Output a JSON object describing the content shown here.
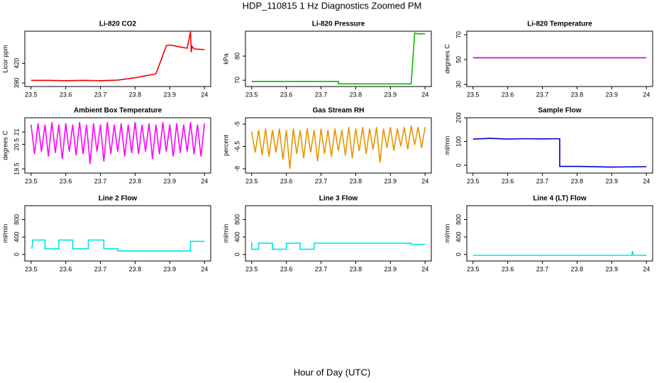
{
  "title": "HDP_110815  1 Hz Diagnostics Zoomed PM",
  "xlabel": "Hour of Day (UTC)",
  "chart_data": [
    {
      "type": "line",
      "title": "Li-820 CO2",
      "ylabel": "Licor ppm",
      "color": "#ee0000",
      "x": [
        23.5,
        23.55,
        23.6,
        23.65,
        23.7,
        23.75,
        23.8,
        23.83,
        23.86,
        23.875,
        23.89,
        23.9,
        23.92,
        23.95,
        23.96,
        23.962,
        23.964,
        23.97,
        24.0
      ],
      "values": [
        394,
        394,
        393.5,
        394,
        393.5,
        394.5,
        398,
        401,
        404,
        425,
        447,
        448,
        446,
        443,
        468,
        437,
        446,
        442,
        441
      ],
      "xlim": [
        23.482,
        24.018
      ],
      "xticks": [
        23.5,
        23.6,
        23.7,
        23.8,
        23.9,
        24.0
      ],
      "ylim": [
        384.6,
        469
      ],
      "yticks": [
        390,
        420
      ]
    },
    {
      "type": "line",
      "title": "Li-820 Pressure",
      "ylabel": "kPa",
      "color": "#00bb00",
      "x": [
        23.5,
        23.75,
        23.75,
        23.96,
        23.97,
        23.98,
        24.0
      ],
      "values": [
        69.5,
        69.5,
        68.5,
        68.5,
        89.5,
        89.2,
        89.2
      ],
      "xlim": [
        23.482,
        24.018
      ],
      "xticks": [
        23.5,
        23.6,
        23.7,
        23.8,
        23.9,
        24.0
      ],
      "ylim": [
        67.4,
        90.3
      ],
      "yticks": [
        70,
        80
      ]
    },
    {
      "type": "line",
      "title": "Li-820 Temperature",
      "ylabel": "degrees C",
      "color": "#cc00cc",
      "x": [
        23.5,
        24.0
      ],
      "values": [
        51.5,
        51.5
      ],
      "xlim": [
        23.482,
        24.018
      ],
      "xticks": [
        23.5,
        23.6,
        23.7,
        23.8,
        23.9,
        24.0
      ],
      "ylim": [
        28.3,
        72.9
      ],
      "yticks": [
        30,
        50,
        70
      ]
    },
    {
      "type": "line",
      "title": "Ambient Box Temperature",
      "ylabel": "degrees C",
      "color": "#ff00ff",
      "x": [
        23.5,
        23.51,
        23.52,
        23.53,
        23.54,
        23.55,
        23.56,
        23.57,
        23.58,
        23.59,
        23.6,
        23.61,
        23.62,
        23.63,
        23.64,
        23.65,
        23.66,
        23.67,
        23.68,
        23.69,
        23.7,
        23.71,
        23.72,
        23.73,
        23.74,
        23.75,
        23.76,
        23.77,
        23.78,
        23.79,
        23.8,
        23.81,
        23.82,
        23.83,
        23.84,
        23.85,
        23.86,
        23.87,
        23.88,
        23.89,
        23.9,
        23.91,
        23.92,
        23.93,
        23.94,
        23.95,
        23.96,
        23.97,
        23.98,
        23.99,
        24.0
      ],
      "values": [
        21.3,
        20.1,
        21.35,
        20.2,
        21.3,
        20.0,
        21.4,
        20.15,
        21.3,
        19.9,
        21.35,
        20.2,
        21.3,
        20.05,
        21.4,
        20.1,
        21.3,
        19.7,
        21.35,
        20.2,
        21.3,
        19.8,
        21.4,
        20.1,
        21.3,
        20.2,
        21.35,
        20.0,
        21.3,
        20.15,
        21.4,
        20.1,
        21.3,
        20.2,
        21.35,
        19.9,
        21.3,
        20.1,
        21.4,
        20.2,
        21.3,
        20.0,
        21.35,
        20.15,
        21.3,
        20.2,
        21.4,
        20.1,
        21.3,
        20.0,
        21.35
      ],
      "xlim": [
        23.482,
        24.018
      ],
      "xticks": [
        23.5,
        23.6,
        23.7,
        23.8,
        23.9,
        24.0
      ],
      "ylim": [
        19.33,
        21.58
      ],
      "yticks": [
        19.5,
        20.5,
        21.0
      ]
    },
    {
      "type": "line",
      "title": "Gas Stream RH",
      "ylabel": "percent",
      "color": "#e69500",
      "x": [
        23.5,
        23.51,
        23.52,
        23.53,
        23.54,
        23.55,
        23.56,
        23.57,
        23.58,
        23.59,
        23.6,
        23.61,
        23.62,
        23.63,
        23.64,
        23.65,
        23.66,
        23.67,
        23.68,
        23.69,
        23.7,
        23.71,
        23.72,
        23.73,
        23.74,
        23.75,
        23.76,
        23.77,
        23.78,
        23.79,
        23.8,
        23.81,
        23.82,
        23.83,
        23.84,
        23.85,
        23.86,
        23.87,
        23.88,
        23.89,
        23.9,
        23.91,
        23.92,
        23.93,
        23.94,
        23.95,
        23.96,
        23.97,
        23.98,
        23.99,
        24.0
      ],
      "values": [
        -5.5,
        -6.9,
        -5.4,
        -7.1,
        -5.3,
        -7.2,
        -5.4,
        -6.9,
        -5.3,
        -7.4,
        -5.4,
        -8.0,
        -5.3,
        -7.0,
        -5.4,
        -7.3,
        -5.3,
        -6.9,
        -5.4,
        -7.5,
        -5.3,
        -7.0,
        -5.4,
        -7.2,
        -5.3,
        -6.8,
        -5.4,
        -7.1,
        -5.2,
        -7.3,
        -5.3,
        -6.8,
        -5.2,
        -7.0,
        -5.3,
        -6.7,
        -5.2,
        -7.6,
        -5.3,
        -6.6,
        -5.2,
        -6.8,
        -5.3,
        -6.5,
        -5.2,
        -6.7,
        -5.1,
        -6.4,
        -5.2,
        -6.6,
        -5.2
      ],
      "xlim": [
        23.482,
        24.018
      ],
      "xticks": [
        23.5,
        23.6,
        23.7,
        23.8,
        23.9,
        24.0
      ],
      "ylim": [
        -8.29,
        -4.57
      ],
      "yticks": [
        -5.0,
        -6.5,
        -8.0
      ]
    },
    {
      "type": "line",
      "title": "Sample Flow",
      "ylabel": "ml/min",
      "color": "#0000cc",
      "x": [
        23.5,
        23.55,
        23.6,
        23.65,
        23.7,
        23.75,
        23.75,
        23.8,
        23.9,
        24.0
      ],
      "values": [
        110,
        113,
        110,
        112,
        111,
        112,
        -5,
        -5,
        -8,
        -6
      ],
      "xlim": [
        23.482,
        24.018
      ],
      "xticks": [
        23.5,
        23.6,
        23.7,
        23.8,
        23.9,
        24.0
      ],
      "ylim": [
        -33,
        200
      ],
      "yticks": [
        0,
        100,
        200
      ]
    },
    {
      "type": "line",
      "title": "Line 2 Flow",
      "ylabel": "ml/min",
      "color": "#00e5e5",
      "x": [
        23.5,
        23.503,
        23.505,
        23.54,
        23.54,
        23.58,
        23.58,
        23.62,
        23.62,
        23.665,
        23.665,
        23.71,
        23.71,
        23.75,
        23.75,
        23.96,
        23.96,
        24.0
      ],
      "values": [
        150,
        150,
        330,
        330,
        130,
        130,
        330,
        330,
        130,
        130,
        330,
        330,
        130,
        130,
        80,
        80,
        300,
        300
      ],
      "xlim": [
        23.482,
        24.018
      ],
      "xticks": [
        23.5,
        23.6,
        23.7,
        23.8,
        23.9,
        24.0
      ],
      "ylim": [
        -150,
        1117
      ],
      "yticks": [
        0,
        400,
        800
      ]
    },
    {
      "type": "line",
      "title": "Line 3 Flow",
      "ylabel": "ml/min",
      "color": "#00e5e5",
      "x": [
        23.5,
        23.5,
        23.505,
        23.52,
        23.52,
        23.56,
        23.56,
        23.6,
        23.6,
        23.64,
        23.64,
        23.68,
        23.68,
        23.96,
        23.96,
        24.0
      ],
      "values": [
        280,
        120,
        120,
        120,
        260,
        260,
        120,
        120,
        260,
        260,
        120,
        120,
        260,
        260,
        230,
        230
      ],
      "xlim": [
        23.482,
        24.018
      ],
      "xticks": [
        23.5,
        23.6,
        23.7,
        23.8,
        23.9,
        24.0
      ],
      "ylim": [
        -150,
        1117
      ],
      "yticks": [
        0,
        400,
        800
      ]
    },
    {
      "type": "line",
      "title": "Line 4 (LT) Flow",
      "ylabel": "ml/min",
      "color": "#00e5e5",
      "x": [
        23.5,
        23.958,
        23.96,
        23.962,
        24.0
      ],
      "values": [
        -20,
        -20,
        80,
        -20,
        -20
      ],
      "xlim": [
        23.482,
        24.018
      ],
      "xticks": [
        23.5,
        23.6,
        23.7,
        23.8,
        23.9,
        24.0
      ],
      "ylim": [
        -150,
        1117
      ],
      "yticks": [
        0,
        400,
        800
      ]
    }
  ]
}
